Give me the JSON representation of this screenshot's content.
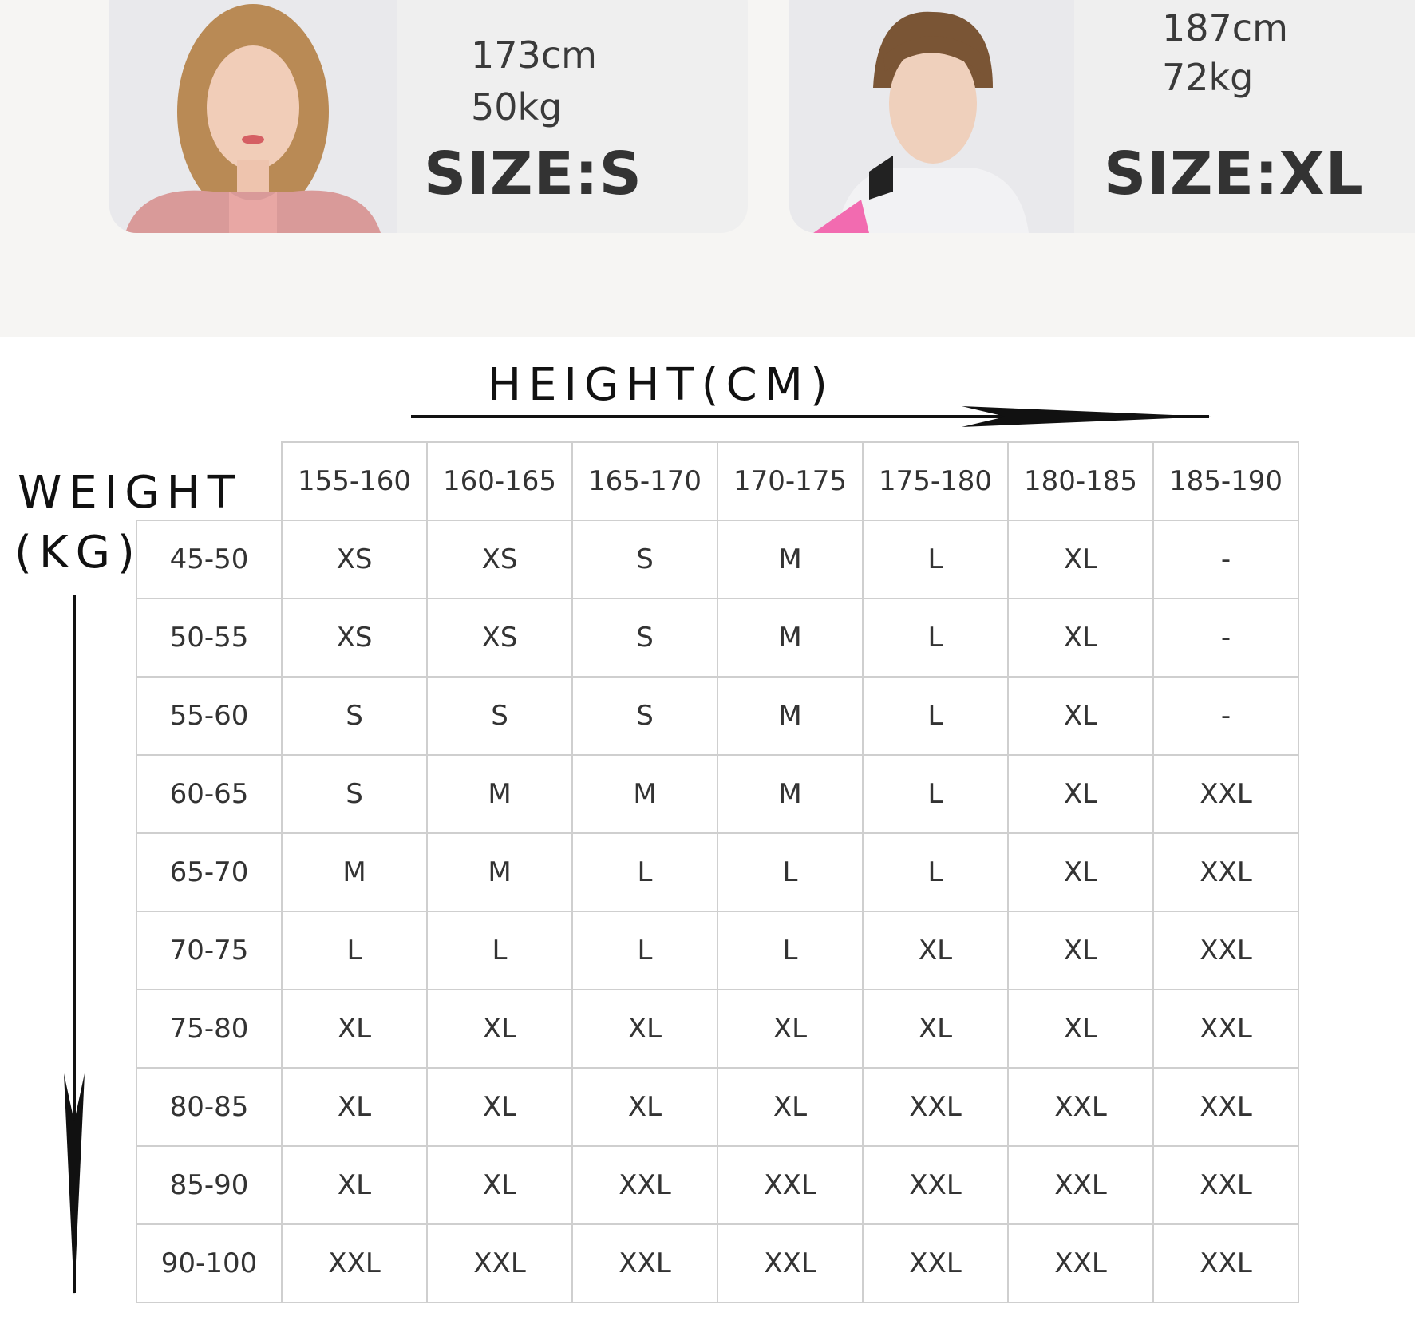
{
  "models": [
    {
      "height": "173cm",
      "weight": "50kg",
      "size": "SIZE:S",
      "accent": "#d98f8f"
    },
    {
      "height": "187cm",
      "weight": "72kg",
      "size": "SIZE:XL",
      "accent": "#f26bb0"
    }
  ],
  "axes": {
    "height_label": "HEIGHT(CM)",
    "weight_label_1": "WEIGHT",
    "weight_label_2": "(KG)"
  },
  "chart_data": {
    "type": "table",
    "columns": [
      "155-160",
      "160-165",
      "165-170",
      "170-175",
      "175-180",
      "180-185",
      "185-190"
    ],
    "rows": [
      {
        "weight": "45-50",
        "sizes": [
          "XS",
          "XS",
          "S",
          "M",
          "L",
          "XL",
          "-"
        ]
      },
      {
        "weight": "50-55",
        "sizes": [
          "XS",
          "XS",
          "S",
          "M",
          "L",
          "XL",
          "-"
        ]
      },
      {
        "weight": "55-60",
        "sizes": [
          "S",
          "S",
          "S",
          "M",
          "L",
          "XL",
          "-"
        ]
      },
      {
        "weight": "60-65",
        "sizes": [
          "S",
          "M",
          "M",
          "M",
          "L",
          "XL",
          "XXL"
        ]
      },
      {
        "weight": "65-70",
        "sizes": [
          "M",
          "M",
          "L",
          "L",
          "L",
          "XL",
          "XXL"
        ]
      },
      {
        "weight": "70-75",
        "sizes": [
          "L",
          "L",
          "L",
          "L",
          "XL",
          "XL",
          "XXL"
        ]
      },
      {
        "weight": "75-80",
        "sizes": [
          "XL",
          "XL",
          "XL",
          "XL",
          "XL",
          "XL",
          "XXL"
        ]
      },
      {
        "weight": "80-85",
        "sizes": [
          "XL",
          "XL",
          "XL",
          "XL",
          "XXL",
          "XXL",
          "XXL"
        ]
      },
      {
        "weight": "85-90",
        "sizes": [
          "XL",
          "XL",
          "XXL",
          "XXL",
          "XXL",
          "XXL",
          "XXL"
        ]
      },
      {
        "weight": "90-100",
        "sizes": [
          "XXL",
          "XXL",
          "XXL",
          "XXL",
          "XXL",
          "XXL",
          "XXL"
        ]
      }
    ]
  }
}
